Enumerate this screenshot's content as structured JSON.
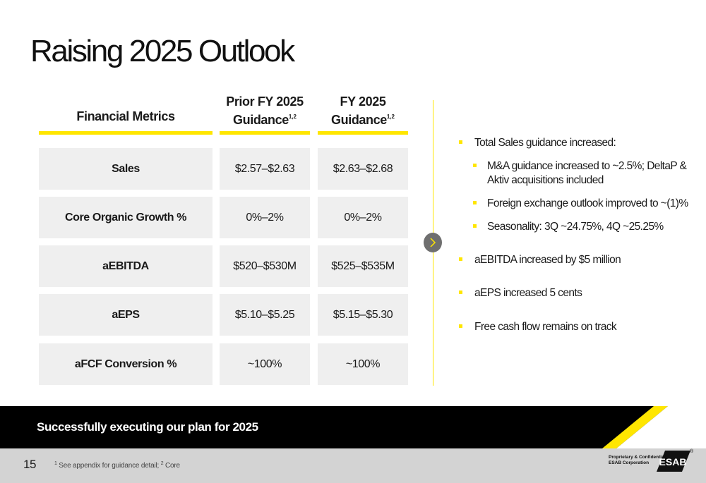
{
  "title": "Raising 2025 Outlook",
  "table": {
    "headers": {
      "metrics": "Financial Metrics",
      "prior_line1": "Prior FY 2025",
      "prior_line2": "Guidance",
      "prior_sup": "1,2",
      "fy_line1": "FY 2025",
      "fy_line2": "Guidance",
      "fy_sup": "1,2"
    },
    "rows": [
      {
        "metric": "Sales",
        "prior": "$2.57–$2.63",
        "fy": "$2.63–$2.68"
      },
      {
        "metric": "Core Organic Growth %",
        "prior": "0%–2%",
        "fy": "0%–2%"
      },
      {
        "metric": "aEBITDA",
        "prior": "$520–$530M",
        "fy": "$525–$535M"
      },
      {
        "metric": "aEPS",
        "prior": "$5.10–$5.25",
        "fy": "$5.15–$5.30"
      },
      {
        "metric": "aFCF Conversion %",
        "prior": "~100%",
        "fy": "~100%"
      }
    ]
  },
  "bullets": {
    "b1": "Total Sales guidance increased:",
    "b1a_line1": "M&A guidance increased to ~2.5%; DeltaP &",
    "b1a_line2": "Aktiv acquisitions included",
    "b1b": "Foreign exchange outlook improved to  ~(1)%",
    "b1c": "Seasonality: 3Q ~24.75%, 4Q ~25.25%",
    "b2": "aEBITDA increased by $5 million",
    "b3": "aEPS increased 5 cents",
    "b4": "Free cash flow remains on track"
  },
  "footer": {
    "message": "Successfully executing our plan for 2025",
    "page_number": "15",
    "footnote_sup1": "1",
    "footnote_text1": " See appendix for guidance detail; ",
    "footnote_sup2": "2",
    "footnote_text2": " Core",
    "proprietary_line1": "Proprietary & Confidential",
    "proprietary_line2": "ESAB Corporation",
    "logo_text": "ESAB",
    "registered": "®"
  },
  "colors": {
    "accent_yellow": "#FFE600",
    "cell_gray": "#efefef",
    "footer_black": "#000000",
    "footer_gray": "#d3d3d3"
  },
  "icons": {
    "arrow": "chevron-right-icon"
  }
}
